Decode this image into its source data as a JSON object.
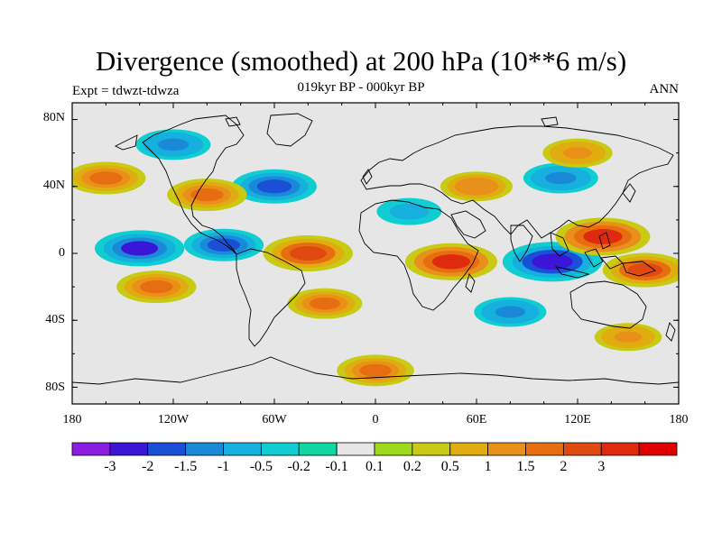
{
  "title": "Divergence (smoothed) at 200 hPa (10**6 m/s)",
  "subtitle": "019kyr BP - 000kyr BP",
  "experiment_label": "Expt = tdwzt-tdwza",
  "season_label": "ANN",
  "map": {
    "projection": "cylindrical-equidistant",
    "lon_range": [
      -180,
      180
    ],
    "lat_range": [
      -90,
      90
    ],
    "lat_ticks": [
      "80N",
      "40N",
      "0",
      "40S",
      "80S"
    ],
    "lon_ticks": [
      "180",
      "120W",
      "60W",
      "0",
      "60E",
      "120E",
      "180"
    ],
    "background_color": "#e6e6e6"
  },
  "colorbar": {
    "colors": [
      "#8a1ee0",
      "#3b16d6",
      "#1a4fd8",
      "#1a8ad8",
      "#16b0de",
      "#10cdd2",
      "#10d6a0",
      "#e6e6e6",
      "#9ed81c",
      "#c8ca14",
      "#e0ac10",
      "#e8901a",
      "#e66e10",
      "#e04a10",
      "#e02a10",
      "#e00000"
    ],
    "labels": [
      "-3",
      "-2",
      "-1.5",
      "-1",
      "-0.5",
      "-0.2",
      "-0.1",
      "0.1",
      "0.2",
      "0.5",
      "1",
      "1.5",
      "2",
      "3"
    ]
  },
  "fields": [
    {
      "lon": -140,
      "lat": 3,
      "level": -0.8,
      "desc": "central pacific divergence"
    },
    {
      "lon": -90,
      "lat": 5,
      "level": -0.6,
      "desc": "eastern pacific"
    },
    {
      "lon": 105,
      "lat": -5,
      "level": -1.0,
      "desc": "maritime continent"
    },
    {
      "lon": 135,
      "lat": 10,
      "level": 0.9,
      "desc": "western pacific"
    },
    {
      "lon": 45,
      "lat": -5,
      "level": 0.85,
      "desc": "east africa"
    },
    {
      "lon": -60,
      "lat": 40,
      "level": -0.7,
      "desc": "north atlantic"
    },
    {
      "lon": -40,
      "lat": 0,
      "level": 0.8,
      "desc": "equatorial atlantic"
    },
    {
      "lon": -130,
      "lat": -20,
      "level": 0.6,
      "desc": "south pacific"
    },
    {
      "lon": 160,
      "lat": -10,
      "level": 0.7,
      "desc": "sw pacific"
    },
    {
      "lon": -100,
      "lat": 35,
      "level": 0.6,
      "desc": "north america"
    },
    {
      "lon": 60,
      "lat": 40,
      "level": 0.45,
      "desc": "central asia"
    },
    {
      "lon": 110,
      "lat": 45,
      "level": -0.5,
      "desc": "east asia"
    },
    {
      "lon": -160,
      "lat": 45,
      "level": 0.6,
      "desc": "north pacific"
    },
    {
      "lon": 0,
      "lat": -70,
      "level": 0.55,
      "desc": "southern ocean"
    },
    {
      "lon": -30,
      "lat": -30,
      "level": 0.5,
      "desc": "south atlantic"
    },
    {
      "lon": 80,
      "lat": -35,
      "level": -0.45,
      "desc": "indian ocean south"
    },
    {
      "lon": 120,
      "lat": 60,
      "level": 0.4,
      "desc": "siberia"
    },
    {
      "lon": -120,
      "lat": 65,
      "level": -0.5,
      "desc": "arctic canada"
    },
    {
      "lon": 20,
      "lat": 25,
      "level": -0.3,
      "desc": "sahara"
    },
    {
      "lon": 150,
      "lat": -50,
      "level": 0.35,
      "desc": "southern ocean east"
    }
  ]
}
